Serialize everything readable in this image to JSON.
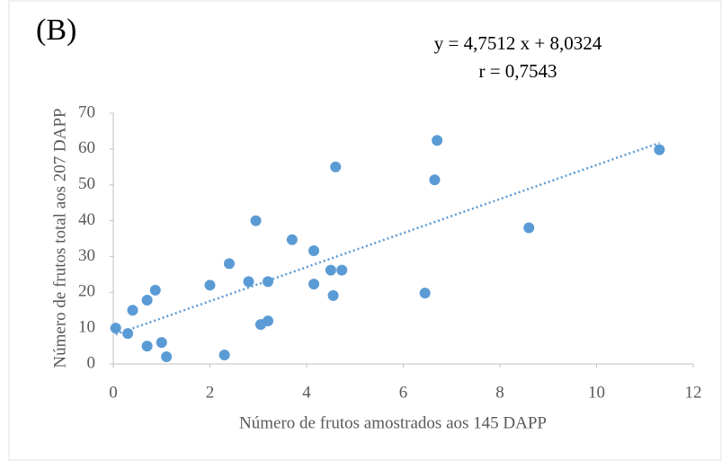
{
  "chart_data": {
    "type": "scatter",
    "panel_label": "(B)",
    "equation": "y = 4,7512 x + 8,0324",
    "correlation": "r = 0,7543",
    "x_label": "Número de frutos amostrados aos 145 DAPP",
    "y_label": "Número de frutos total aos 207 DAPP",
    "color": "#5b9bd5",
    "trendline": {
      "slope": 4.7512,
      "intercept": 8.0324
    },
    "x": [
      0.05,
      0.3,
      0.4,
      0.7,
      0.7,
      0.87,
      1.0,
      1.1,
      2.0,
      2.3,
      2.4,
      2.8,
      2.95,
      3.05,
      3.2,
      3.2,
      3.7,
      4.15,
      4.15,
      4.5,
      4.73,
      4.55,
      4.6,
      6.45,
      6.7,
      6.65,
      8.6,
      11.3
    ],
    "values": [
      10,
      8.5,
      15,
      17.8,
      5,
      20.6,
      6,
      2,
      22,
      2.5,
      28,
      23,
      40,
      11,
      12,
      23,
      34.7,
      31.6,
      22.3,
      26.2,
      26.2,
      19.1,
      55,
      19.8,
      62.4,
      51.4,
      38,
      59.8
    ],
    "xlim": [
      0,
      12
    ],
    "xticks": [
      0,
      2,
      4,
      6,
      8,
      10,
      12
    ],
    "ylim": [
      0,
      70
    ],
    "yticks": [
      0,
      10,
      20,
      30,
      40,
      50,
      60,
      70
    ]
  }
}
